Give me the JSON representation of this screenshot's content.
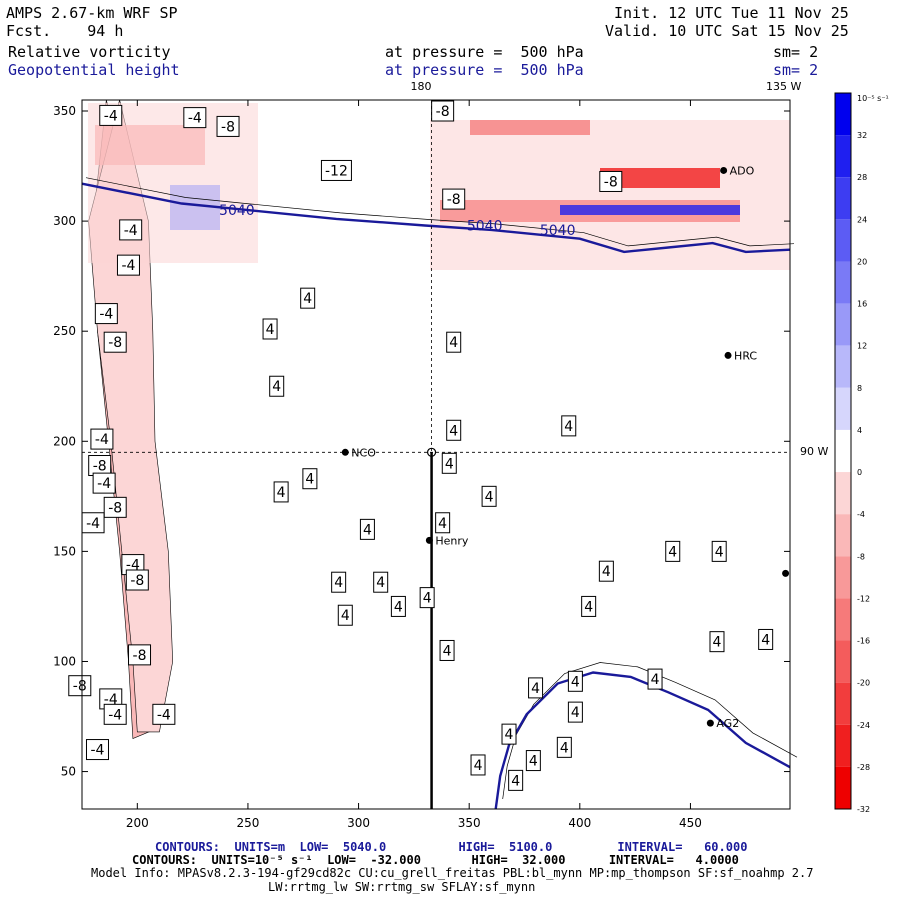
{
  "header": {
    "model": "AMPS 2.67-km WRF SP",
    "fcst_label": "Fcst.",
    "fcst_value": "94 h",
    "init": "Init. 12 UTC Tue 11 Nov 25",
    "valid": "Valid. 10 UTC Sat 15 Nov 25",
    "field1": "Relative vorticity",
    "field2": "Geopotential height",
    "pressure1": "at pressure =  500 hPa",
    "pressure2": "at pressure =  500 hPa",
    "sm1": "sm= 2",
    "sm2": "sm= 2"
  },
  "map_labels": {
    "lon_top": "180",
    "lon_corner": "135 W",
    "lon_right": "90 W"
  },
  "stations": [
    {
      "name": "HRC",
      "x": 467,
      "y": 239
    },
    {
      "name": "NCO",
      "x": 294,
      "y": 195
    },
    {
      "name": "Henry",
      "x": 332,
      "y": 155
    },
    {
      "name": "AG2",
      "x": 459,
      "y": 72
    },
    {
      "name": "ADO",
      "x": 465,
      "y": 323
    },
    {
      "name": "",
      "x": 493,
      "y": 140
    }
  ],
  "chart_data": {
    "type": "contour",
    "xlim": [
      175,
      495
    ],
    "ylim": [
      33,
      355
    ],
    "x_ticks": [
      200,
      250,
      300,
      350,
      400,
      450
    ],
    "y_ticks": [
      50,
      100,
      150,
      200,
      250,
      300,
      350
    ],
    "colorbar": {
      "units": "10⁻⁵ s⁻¹",
      "tick_labels": [
        "32",
        "28",
        "24",
        "20",
        "16",
        "12",
        "8",
        "4",
        "0",
        "-4",
        "-8",
        "-12",
        "-16",
        "-20",
        "-24",
        "-28",
        "-32"
      ],
      "colors": [
        "#0000ee",
        "#1f1ff0",
        "#3d3df2",
        "#5c5cf4",
        "#7a7af6",
        "#9999f8",
        "#b8b8fa",
        "#d6d6fc",
        "#ffffff",
        "#fcd6d6",
        "#fab8b8",
        "#f89999",
        "#f67a7a",
        "#f45c5c",
        "#f23d3d",
        "#f01f1f",
        "#ee0000"
      ]
    },
    "height_contours": [
      {
        "label": "5040",
        "points": [
          [
            175,
            317
          ],
          [
            200,
            312
          ],
          [
            220,
            308
          ],
          [
            250,
            305
          ],
          [
            290,
            301
          ],
          [
            330,
            298
          ],
          [
            360,
            296
          ],
          [
            400,
            292
          ],
          [
            420,
            286
          ],
          [
            440,
            288
          ],
          [
            460,
            290
          ],
          [
            475,
            286
          ],
          [
            495,
            287
          ]
        ]
      },
      {
        "label": "5040",
        "points": [
          [
            362,
            33
          ],
          [
            364,
            48
          ],
          [
            368,
            62
          ],
          [
            376,
            76
          ],
          [
            390,
            90
          ],
          [
            406,
            95
          ],
          [
            423,
            93
          ],
          [
            440,
            86
          ],
          [
            458,
            78
          ],
          [
            475,
            63
          ],
          [
            495,
            52
          ]
        ]
      }
    ],
    "height_label_positions": [
      [
        245,
        305
      ],
      [
        357,
        298
      ],
      [
        390,
        296
      ]
    ],
    "vorticity_bands": [
      {
        "sign": -1,
        "fill": "#fab8b8",
        "outer": [
          [
            186,
            355
          ],
          [
            200,
            300
          ],
          [
            205,
            250
          ],
          [
            200,
            200
          ],
          [
            206,
            140
          ],
          [
            208,
            100
          ],
          [
            210,
            70
          ],
          [
            198,
            65
          ],
          [
            196,
            100
          ],
          [
            192,
            150
          ],
          [
            187,
            200
          ],
          [
            182,
            250
          ],
          [
            180,
            300
          ]
        ]
      },
      {
        "sign": -1,
        "fill": "#fcd6d6",
        "outer": [
          [
            178,
            300
          ],
          [
            182,
            250
          ],
          [
            188,
            200
          ],
          [
            193,
            150
          ],
          [
            198,
            100
          ],
          [
            200,
            68
          ],
          [
            210,
            68
          ],
          [
            216,
            100
          ],
          [
            214,
            150
          ],
          [
            208,
            200
          ],
          [
            207,
            250
          ],
          [
            205,
            300
          ],
          [
            192,
            355
          ]
        ]
      }
    ],
    "contour_labels": [
      {
        "text": "-4",
        "x": 188,
        "y": 348
      },
      {
        "text": "-4",
        "x": 226,
        "y": 347
      },
      {
        "text": "-8",
        "x": 241,
        "y": 343
      },
      {
        "text": "-8",
        "x": 338,
        "y": 350
      },
      {
        "text": "-12",
        "x": 290,
        "y": 323
      },
      {
        "text": "-8",
        "x": 343,
        "y": 310
      },
      {
        "text": "-8",
        "x": 414,
        "y": 318
      },
      {
        "text": "-4",
        "x": 197,
        "y": 296
      },
      {
        "text": "-4",
        "x": 196,
        "y": 280
      },
      {
        "text": "-4",
        "x": 186,
        "y": 258
      },
      {
        "text": "-8",
        "x": 190,
        "y": 245
      },
      {
        "text": "-4",
        "x": 184,
        "y": 201
      },
      {
        "text": "-8",
        "x": 183,
        "y": 189
      },
      {
        "text": "-4",
        "x": 185,
        "y": 181
      },
      {
        "text": "-8",
        "x": 190,
        "y": 170
      },
      {
        "text": "-4",
        "x": 180,
        "y": 163
      },
      {
        "text": "-4",
        "x": 198,
        "y": 144
      },
      {
        "text": "-8",
        "x": 200,
        "y": 137
      },
      {
        "text": "-8",
        "x": 201,
        "y": 103
      },
      {
        "text": "-4",
        "x": 188,
        "y": 83
      },
      {
        "text": "-4",
        "x": 190,
        "y": 76
      },
      {
        "text": "-4",
        "x": 212,
        "y": 76
      },
      {
        "text": "-4",
        "x": 182,
        "y": 60
      },
      {
        "text": "-8",
        "x": 174,
        "y": 89
      },
      {
        "text": "4",
        "x": 277,
        "y": 265
      },
      {
        "text": "4",
        "x": 260,
        "y": 251
      },
      {
        "text": "4",
        "x": 263,
        "y": 225
      },
      {
        "text": "4",
        "x": 343,
        "y": 245
      },
      {
        "text": "4",
        "x": 343,
        "y": 205
      },
      {
        "text": "4",
        "x": 341,
        "y": 190
      },
      {
        "text": "4",
        "x": 395,
        "y": 207
      },
      {
        "text": "4",
        "x": 265,
        "y": 177
      },
      {
        "text": "4",
        "x": 278,
        "y": 183
      },
      {
        "text": "4",
        "x": 359,
        "y": 175
      },
      {
        "text": "4",
        "x": 304,
        "y": 160
      },
      {
        "text": "4",
        "x": 338,
        "y": 163
      },
      {
        "text": "4",
        "x": 442,
        "y": 150
      },
      {
        "text": "4",
        "x": 463,
        "y": 150
      },
      {
        "text": "4",
        "x": 412,
        "y": 141
      },
      {
        "text": "4",
        "x": 291,
        "y": 136
      },
      {
        "text": "4",
        "x": 310,
        "y": 136
      },
      {
        "text": "4",
        "x": 331,
        "y": 129
      },
      {
        "text": "4",
        "x": 294,
        "y": 121
      },
      {
        "text": "4",
        "x": 318,
        "y": 125
      },
      {
        "text": "4",
        "x": 340,
        "y": 105
      },
      {
        "text": "4",
        "x": 404,
        "y": 125
      },
      {
        "text": "4",
        "x": 462,
        "y": 109
      },
      {
        "text": "4",
        "x": 484,
        "y": 110
      },
      {
        "text": "4",
        "x": 380,
        "y": 88
      },
      {
        "text": "4",
        "x": 398,
        "y": 91
      },
      {
        "text": "4",
        "x": 434,
        "y": 92
      },
      {
        "text": "4",
        "x": 398,
        "y": 77
      },
      {
        "text": "4",
        "x": 368,
        "y": 67
      },
      {
        "text": "4",
        "x": 393,
        "y": 61
      },
      {
        "text": "4",
        "x": 379,
        "y": 55
      },
      {
        "text": "4",
        "x": 354,
        "y": 53
      },
      {
        "text": "4",
        "x": 371,
        "y": 46
      }
    ],
    "cross_section": {
      "x": 333,
      "y_from": 33,
      "y_to": 195
    }
  },
  "footer": {
    "line1_a": "CONTOURS:  UNITS=m  LOW=  5040.0",
    "line1_b": "HIGH=  5100.0",
    "line1_c": "INTERVAL=   60.000",
    "line2": "CONTOURS:  UNITS=10⁻⁵ s⁻¹  LOW=  -32.000       HIGH=  32.000      INTERVAL=   4.0000",
    "line3": "Model Info: MPASv8.2.3-194-gf29cd82c CU:cu_grell_freitas PBL:bl_mynn MP:mp_thompson SF:sf_noahmp 2.7",
    "line4": "LW:rrtmg_lw SW:rrtmg_sw SFLAY:sf_mynn"
  }
}
